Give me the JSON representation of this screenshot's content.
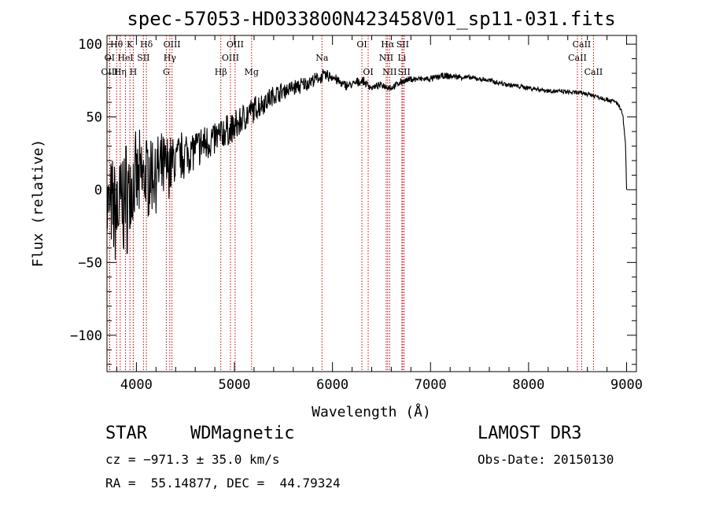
{
  "chart_data": {
    "type": "line",
    "title": "spec-57053-HD033800N423458V01_sp11-031.fits",
    "xlabel": "Wavelength (Å)",
    "ylabel": "Flux (relative)",
    "xlim": [
      3700,
      9100
    ],
    "ylim": [
      -125,
      106
    ],
    "xticks": [
      4000,
      5000,
      6000,
      7000,
      8000,
      9000
    ],
    "yticks": [
      -100,
      -50,
      0,
      50,
      100
    ],
    "tick_labels_x": [
      "4000",
      "5000",
      "6000",
      "7000",
      "8000",
      "9000"
    ],
    "tick_labels_y": [
      "−100",
      "−50",
      "0",
      "50",
      "100"
    ],
    "spectrum_anchors": {
      "wavelength": [
        3700,
        3800,
        3900,
        4000,
        4100,
        4200,
        4300,
        4400,
        4500,
        4600,
        4700,
        4800,
        4900,
        5000,
        5100,
        5200,
        5300,
        5400,
        5500,
        5600,
        5700,
        5800,
        5900,
        6000,
        6100,
        6200,
        6300,
        6400,
        6500,
        6600,
        6700,
        6800,
        6900,
        7000,
        7100,
        7200,
        7400,
        7600,
        7800,
        8000,
        8200,
        8400,
        8600,
        8800,
        8900,
        8960,
        8990,
        9000
      ],
      "flux": [
        -10,
        -15,
        -5,
        5,
        10,
        12,
        15,
        20,
        25,
        28,
        32,
        35,
        40,
        42,
        50,
        55,
        60,
        65,
        68,
        70,
        72,
        75,
        78,
        78,
        72,
        72,
        75,
        70,
        72,
        70,
        74,
        76,
        76,
        76,
        78,
        78,
        77,
        75,
        72,
        70,
        68,
        67,
        66,
        62,
        60,
        52,
        30,
        0
      ],
      "noise": [
        25,
        35,
        35,
        28,
        26,
        22,
        20,
        16,
        14,
        12,
        12,
        11,
        10,
        10,
        9,
        8,
        7,
        6,
        5,
        5,
        5,
        4,
        4,
        4,
        3,
        3,
        3,
        2,
        2,
        2,
        2,
        2,
        2,
        2,
        2,
        2,
        1.5,
        1.5,
        1.5,
        1.5,
        1.5,
        1.5,
        1.5,
        1.5,
        1.5,
        1.5,
        1,
        0
      ]
    },
    "spectral_lines": [
      {
        "label": "Hθ",
        "wavelength": 3798,
        "row": 0
      },
      {
        "label": "K",
        "wavelength": 3934,
        "row": 0
      },
      {
        "label": "Hδ",
        "wavelength": 4102,
        "row": 0
      },
      {
        "label": "OIII",
        "wavelength": 4363,
        "row": 0
      },
      {
        "label": "OIII",
        "wavelength": 5007,
        "row": 0
      },
      {
        "label": "OI",
        "wavelength": 6300,
        "row": 0
      },
      {
        "label": "Hα",
        "wavelength": 6563,
        "row": 0
      },
      {
        "label": "SII",
        "wavelength": 6716,
        "row": 0
      },
      {
        "label": "CaII",
        "wavelength": 8542,
        "row": 0
      },
      {
        "label": "OI",
        "wavelength": 3727,
        "row": 1
      },
      {
        "label": "HeI",
        "wavelength": 3889,
        "row": 1
      },
      {
        "label": "SII",
        "wavelength": 4072,
        "row": 1
      },
      {
        "label": "Hγ",
        "wavelength": 4341,
        "row": 1
      },
      {
        "label": "OIII",
        "wavelength": 4959,
        "row": 1
      },
      {
        "label": "Na",
        "wavelength": 5893,
        "row": 1
      },
      {
        "label": "NII",
        "wavelength": 6548,
        "row": 1
      },
      {
        "label": "Li",
        "wavelength": 6708,
        "row": 1
      },
      {
        "label": "CaII",
        "wavelength": 8498,
        "row": 1
      },
      {
        "label": "OIII",
        "wavelength": 3727,
        "row": 2
      },
      {
        "label": "Hη",
        "wavelength": 3835,
        "row": 2
      },
      {
        "label": "H",
        "wavelength": 3968,
        "row": 2
      },
      {
        "label": "G",
        "wavelength": 4305,
        "row": 2
      },
      {
        "label": "Hβ",
        "wavelength": 4861,
        "row": 2
      },
      {
        "label": "Mg",
        "wavelength": 5175,
        "row": 2
      },
      {
        "label": "OI",
        "wavelength": 6364,
        "row": 2
      },
      {
        "label": "NII",
        "wavelength": 6583,
        "row": 2
      },
      {
        "label": "SII",
        "wavelength": 6731,
        "row": 2
      },
      {
        "label": "CaII",
        "wavelength": 8662,
        "row": 2
      }
    ]
  },
  "footer": {
    "object_type": "STAR",
    "subclass": "WDMagnetic",
    "survey": "LAMOST DR3",
    "cz": "cz = −971.3 ± 35.0 km/s",
    "obs_date": "Obs-Date: 20150130",
    "radec": "RA =  55.14877, DEC =  44.79324"
  },
  "colors": {
    "line_marker": "#cc0000",
    "spectrum": "#000000",
    "background": "#ffffff"
  }
}
